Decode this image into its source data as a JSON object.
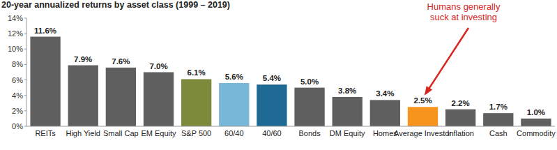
{
  "chart_data": {
    "type": "bar",
    "title": "20-year annualized returns by asset class (1999 – 2019)",
    "categories": [
      "REITs",
      "High Yield",
      "Small Cap",
      "EM Equity",
      "S&P 500",
      "60/40",
      "40/60",
      "Bonds",
      "DM Equity",
      "Homes",
      "Average Investor",
      "Inflation",
      "Cash",
      "Commodity"
    ],
    "values": [
      11.6,
      7.9,
      7.6,
      7.0,
      6.1,
      5.6,
      5.4,
      5.0,
      3.8,
      3.4,
      2.5,
      2.2,
      1.7,
      1.0
    ],
    "value_labels": [
      "11.6%",
      "7.9%",
      "7.6%",
      "7.0%",
      "6.1%",
      "5.6%",
      "5.4%",
      "5.0%",
      "3.8%",
      "3.4%",
      "2.5%",
      "2.2%",
      "1.7%",
      "1.0%"
    ],
    "colors": [
      "#5f5f5f",
      "#5f5f5f",
      "#5f5f5f",
      "#5f5f5f",
      "#7d8a3c",
      "#79b7d8",
      "#1f6a94",
      "#5f5f5f",
      "#5f5f5f",
      "#5f5f5f",
      "#f7941d",
      "#5f5f5f",
      "#5f5f5f",
      "#5f5f5f"
    ],
    "ylim": [
      0,
      14
    ],
    "yticks": [
      {
        "value": 0,
        "label": "0%"
      },
      {
        "value": 2,
        "label": "2%"
      },
      {
        "value": 4,
        "label": "4%"
      },
      {
        "value": 6,
        "label": "6%"
      },
      {
        "value": 8,
        "label": "8%"
      },
      {
        "value": 10,
        "label": "10%"
      },
      {
        "value": 12,
        "label": "12%"
      },
      {
        "value": 14,
        "label": "14%"
      }
    ],
    "grid": false,
    "data_labels": true,
    "annotation": {
      "text": [
        "Humans generally",
        "suck at investing"
      ],
      "category": "Average Investor"
    }
  }
}
